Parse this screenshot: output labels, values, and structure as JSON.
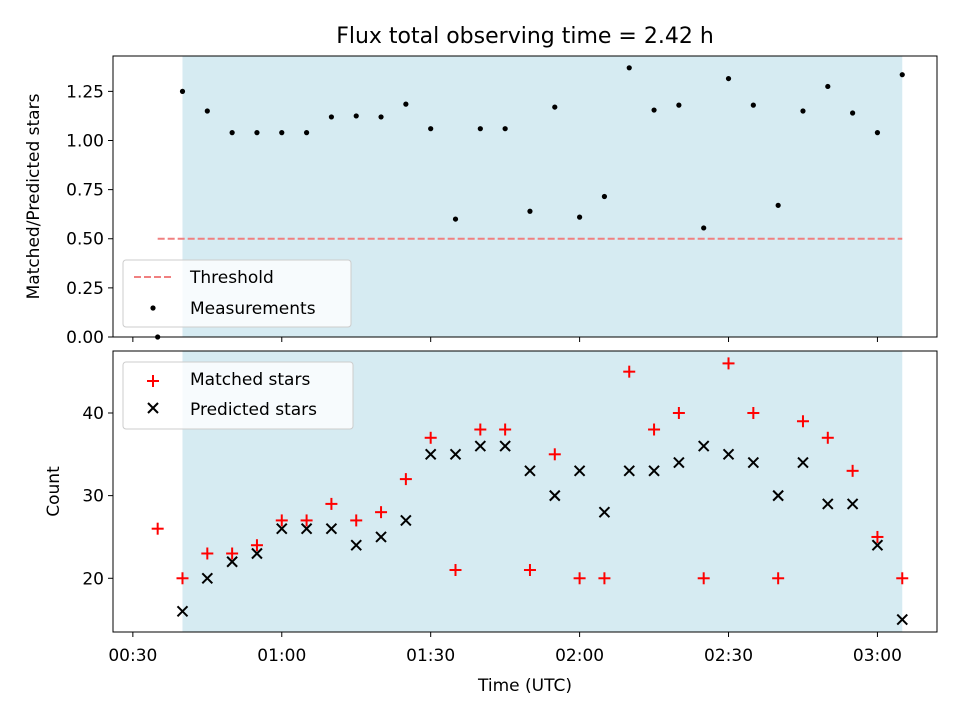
{
  "chart_data": [
    {
      "type": "scatter",
      "title": "Flux total observing time = 2.42 h",
      "ylabel": "Matched/Predicted stars",
      "xlim": [
        "00:26",
        "03:12"
      ],
      "ylim": [
        0,
        1.43
      ],
      "yticks": [
        0.0,
        0.25,
        0.5,
        0.75,
        1.0,
        1.25
      ],
      "ytick_labels": [
        "0.00",
        "0.25",
        "0.50",
        "0.75",
        "1.00",
        "1.25"
      ],
      "shaded_span": [
        "00:40",
        "03:05"
      ],
      "shaded_color": "#add8e6",
      "threshold": {
        "name": "Threshold",
        "value": 0.5,
        "x_range": [
          "00:35",
          "03:05"
        ],
        "color": "#f08080",
        "style": "dashed"
      },
      "legend": {
        "loc": "lower-left",
        "entries": [
          "Threshold",
          "Measurements"
        ]
      },
      "series": [
        {
          "name": "Measurements",
          "marker": "dot",
          "color": "#000000",
          "x": [
            "00:35",
            "00:40",
            "00:45",
            "00:50",
            "00:55",
            "01:00",
            "01:05",
            "01:10",
            "01:15",
            "01:20",
            "01:25",
            "01:30",
            "01:35",
            "01:40",
            "01:45",
            "01:50",
            "01:55",
            "02:00",
            "02:05",
            "02:10",
            "02:15",
            "02:20",
            "02:25",
            "02:30",
            "02:35",
            "02:40",
            "02:45",
            "02:50",
            "02:55",
            "03:00",
            "03:05"
          ],
          "y": [
            0.0,
            1.25,
            1.15,
            1.04,
            1.04,
            1.04,
            1.04,
            1.12,
            1.125,
            1.12,
            1.185,
            1.06,
            0.6,
            1.06,
            1.06,
            0.64,
            1.17,
            0.61,
            0.715,
            1.37,
            1.155,
            1.18,
            0.555,
            1.315,
            1.18,
            0.67,
            1.15,
            1.275,
            1.14,
            1.04,
            1.335
          ]
        }
      ]
    },
    {
      "type": "scatter",
      "xlabel": "Time (UTC)",
      "ylabel": "Count",
      "xlim": [
        "00:26",
        "03:12"
      ],
      "ylim": [
        13.5,
        47.5
      ],
      "yticks": [
        20,
        30,
        40
      ],
      "ytick_labels": [
        "20",
        "30",
        "40"
      ],
      "xtick_labels": [
        "00:30",
        "01:00",
        "01:30",
        "02:00",
        "02:30",
        "03:00"
      ],
      "shaded_span": [
        "00:40",
        "03:05"
      ],
      "shaded_color": "#add8e6",
      "legend": {
        "loc": "upper-left",
        "entries": [
          "Matched stars",
          "Predicted stars"
        ]
      },
      "series": [
        {
          "name": "Matched stars",
          "marker": "plus",
          "color": "#ff0000",
          "x": [
            "00:35",
            "00:40",
            "00:45",
            "00:50",
            "00:55",
            "01:00",
            "01:05",
            "01:10",
            "01:15",
            "01:20",
            "01:25",
            "01:30",
            "01:35",
            "01:40",
            "01:45",
            "01:50",
            "01:55",
            "02:00",
            "02:05",
            "02:10",
            "02:15",
            "02:20",
            "02:25",
            "02:30",
            "02:35",
            "02:40",
            "02:45",
            "02:50",
            "02:55",
            "03:00",
            "03:05"
          ],
          "y": [
            26,
            20,
            23,
            23,
            24,
            27,
            27,
            29,
            27,
            28,
            32,
            37,
            21,
            38,
            38,
            21,
            35,
            20,
            20,
            45,
            38,
            40,
            20,
            46,
            40,
            20,
            39,
            37,
            33,
            25,
            20
          ]
        },
        {
          "name": "Predicted stars",
          "marker": "x",
          "color": "#000000",
          "x": [
            "00:40",
            "00:45",
            "00:50",
            "00:55",
            "01:00",
            "01:05",
            "01:10",
            "01:15",
            "01:20",
            "01:25",
            "01:30",
            "01:35",
            "01:40",
            "01:45",
            "01:50",
            "01:55",
            "02:00",
            "02:05",
            "02:10",
            "02:15",
            "02:20",
            "02:25",
            "02:30",
            "02:35",
            "02:40",
            "02:45",
            "02:50",
            "02:55",
            "03:00",
            "03:05"
          ],
          "y": [
            16,
            20,
            22,
            23,
            26,
            26,
            26,
            24,
            25,
            27,
            35,
            35,
            36,
            36,
            33,
            30,
            33,
            28,
            33,
            33,
            34,
            36,
            35,
            34,
            30,
            34,
            29,
            29,
            24,
            15
          ]
        }
      ]
    }
  ]
}
